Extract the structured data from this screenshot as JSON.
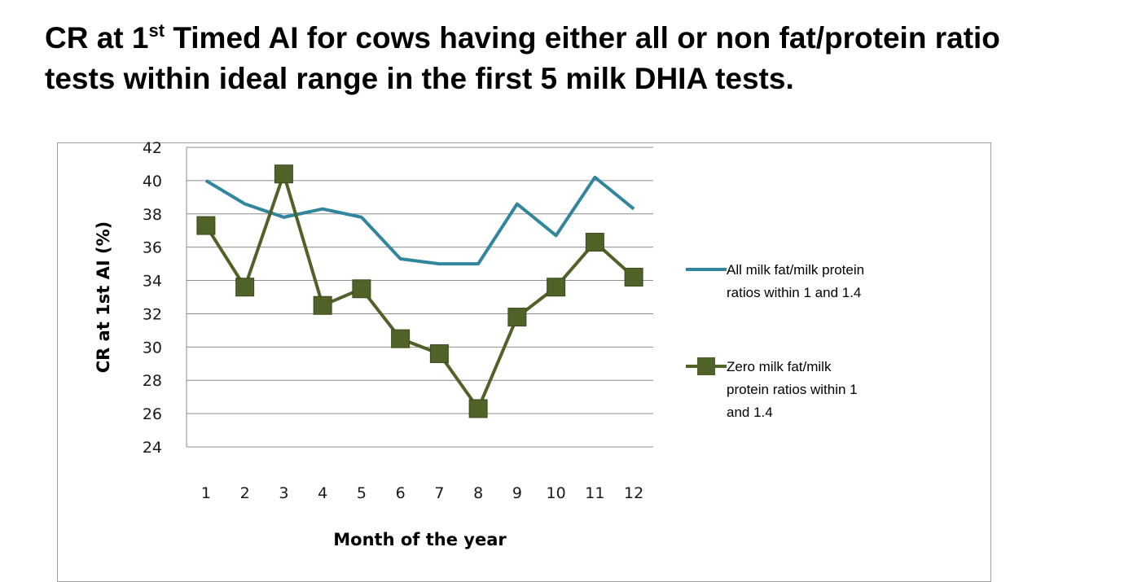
{
  "title": {
    "line1_pre": "CR at 1",
    "line1_sup": "st",
    "line1_post": " Timed AI for cows having either all or non fat/protein ratio",
    "line2": "tests within ideal range in the first 5 milk DHIA tests."
  },
  "colors": {
    "series_all": "#31859c",
    "series_zero": "#4f6228",
    "marker_zero": "#4f6228",
    "grid": "#8c8c8c"
  },
  "chart_data": {
    "type": "line",
    "xlabel": "Month of the year",
    "ylabel": "CR at 1st AI (%)",
    "ylim": [
      24,
      42
    ],
    "yticks": [
      "24",
      "26",
      "28",
      "30",
      "32",
      "34",
      "36",
      "38",
      "40",
      "42"
    ],
    "categories": [
      "1",
      "2",
      "3",
      "4",
      "5",
      "6",
      "7",
      "8",
      "9",
      "10",
      "11",
      "12"
    ],
    "grid": true,
    "legend_position": "right",
    "series": [
      {
        "name_lines": [
          "All milk fat/milk protein",
          "ratios within 1 and 1.4"
        ],
        "values": [
          40.0,
          38.6,
          37.8,
          38.3,
          37.8,
          35.3,
          35.0,
          35.0,
          38.6,
          36.7,
          40.2,
          38.3
        ],
        "marker": "none"
      },
      {
        "name_lines": [
          "Zero milk fat/milk",
          "protein ratios within 1",
          "and 1.4"
        ],
        "values": [
          37.3,
          33.6,
          40.4,
          32.5,
          33.5,
          30.5,
          29.6,
          26.3,
          31.8,
          33.6,
          36.3,
          34.2
        ],
        "marker": "square"
      }
    ]
  }
}
